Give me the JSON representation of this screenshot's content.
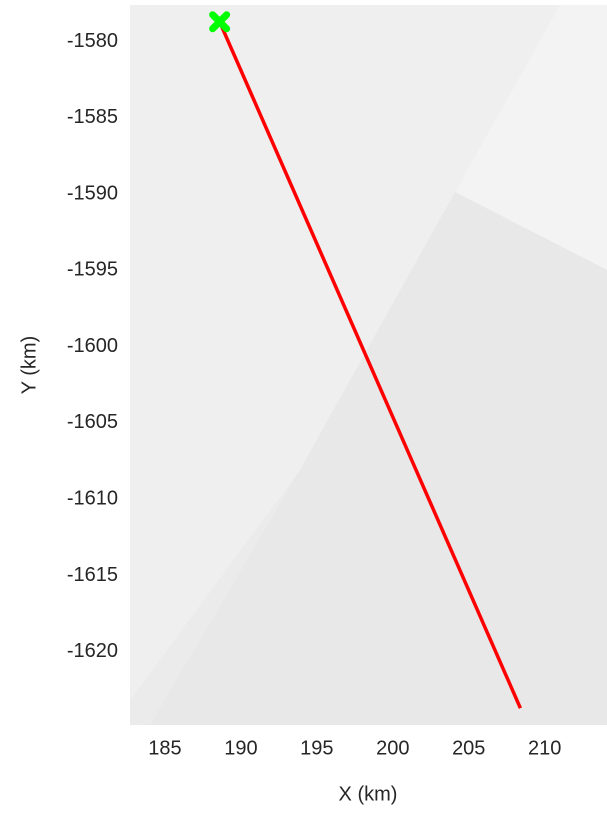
{
  "chart_data": {
    "type": "line",
    "xlabel": "X (km)",
    "ylabel": "Y (km)",
    "xlim": [
      182.7,
      214.1
    ],
    "ylim": [
      -1624.8,
      -1577.6
    ],
    "xticks": [
      185,
      190,
      195,
      200,
      205,
      210
    ],
    "yticks": [
      -1580,
      -1585,
      -1590,
      -1595,
      -1600,
      -1605,
      -1610,
      -1615,
      -1620
    ],
    "grid": false,
    "series": [
      {
        "color": "#ff0000",
        "x": [
          188.6,
          208.4
        ],
        "values": [
          -1578.7,
          -1623.7
        ]
      },
      {
        "color": "#00ff00",
        "x": [
          188.6
        ],
        "values": [
          -1578.7
        ],
        "marker": "X"
      }
    ]
  }
}
